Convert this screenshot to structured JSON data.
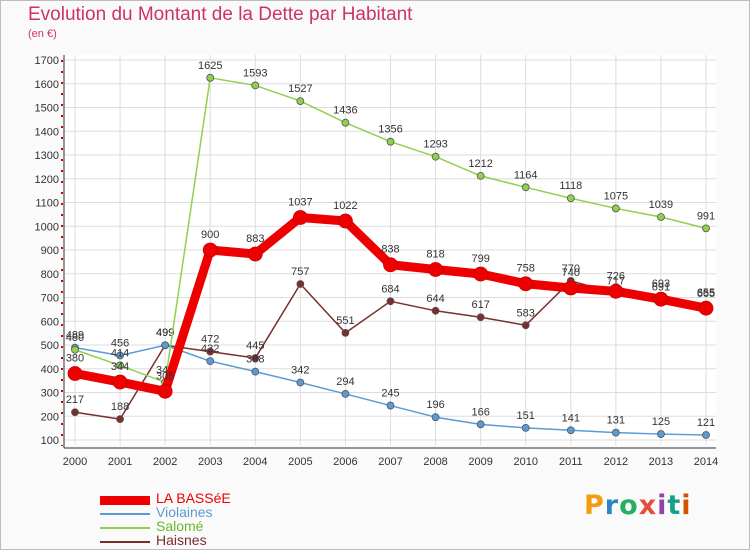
{
  "title": "Evolution du Montant de la Dette par Habitant",
  "unit": "(en €)",
  "brand": {
    "text": "Proxiti",
    "colors": [
      "#f39c12",
      "#2e86c1",
      "#27ae60",
      "#e74c3c",
      "#8e44ad",
      "#16a085",
      "#d35400"
    ]
  },
  "chart_data": {
    "type": "line",
    "x": [
      2000,
      2001,
      2002,
      2003,
      2004,
      2005,
      2006,
      2007,
      2008,
      2009,
      2010,
      2011,
      2012,
      2013,
      2014
    ],
    "ylim": [
      100,
      1700
    ],
    "yticks": [
      100,
      200,
      300,
      400,
      500,
      600,
      700,
      800,
      900,
      1000,
      1100,
      1200,
      1300,
      1400,
      1500,
      1600,
      1700
    ],
    "grid": true,
    "legend_position": "bottom-left",
    "series": [
      {
        "name": "Haisnes",
        "color": "#7a2e2e",
        "values": [
          217,
          188,
          499,
          472,
          445,
          757,
          551,
          684,
          644,
          617,
          583,
          770,
          717,
          691,
          665
        ]
      },
      {
        "name": "Violaines",
        "color": "#5b9bd5",
        "values": [
          489,
          456,
          499,
          432,
          388,
          342,
          294,
          245,
          196,
          166,
          151,
          141,
          131,
          125,
          121
        ]
      },
      {
        "name": "Salomé",
        "color": "#8fd14f",
        "values": [
          480,
          414,
          343,
          1625,
          1593,
          1527,
          1436,
          1356,
          1293,
          1212,
          1164,
          1118,
          1075,
          1039,
          991
        ]
      },
      {
        "name": "LA BASSéE",
        "color": "#ee0000",
        "values": [
          380,
          344,
          305,
          900,
          883,
          1037,
          1022,
          838,
          818,
          799,
          758,
          740,
          726,
          693,
          655
        ]
      }
    ]
  }
}
